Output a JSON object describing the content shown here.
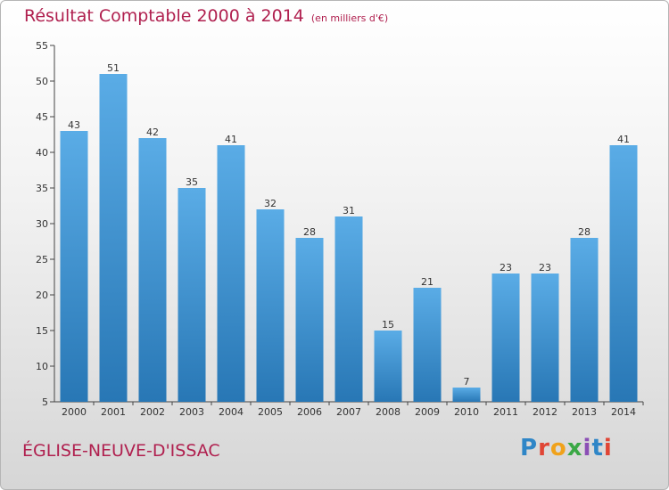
{
  "title": "Résultat Comptable 2000 à 2014",
  "unit": "(en milliers d'€)",
  "commune": "ÉGLISE-NEUVE-D'ISSAC",
  "logo": {
    "text": "Proxiti",
    "colors": [
      "#2f86c7",
      "#e04535",
      "#f0a21b",
      "#3aa845",
      "#8b4fb5",
      "#2f86c7",
      "#e04535"
    ]
  },
  "colors": {
    "bar_light": "#5aace6",
    "bar_dark": "#2877b5",
    "title": "#b0204f"
  },
  "chart_data": {
    "type": "bar",
    "categories": [
      "2000",
      "2001",
      "2002",
      "2003",
      "2004",
      "2005",
      "2006",
      "2007",
      "2008",
      "2009",
      "2010",
      "2011",
      "2012",
      "2013",
      "2014"
    ],
    "values": [
      43,
      51,
      42,
      35,
      41,
      32,
      28,
      31,
      15,
      21,
      7,
      23,
      23,
      28,
      41
    ],
    "ylim": [
      5,
      55
    ],
    "yticks": [
      5,
      10,
      15,
      20,
      25,
      30,
      35,
      40,
      45,
      50,
      55
    ],
    "grid": false,
    "data_labels": true
  }
}
